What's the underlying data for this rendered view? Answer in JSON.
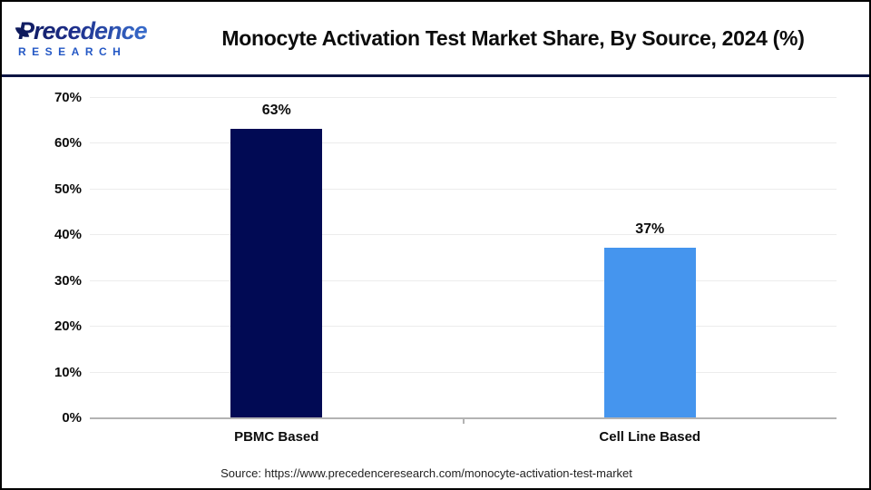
{
  "header": {
    "logo": {
      "line1": "Precedence",
      "line2": "RESEARCH",
      "color_dark": "#0e1a5c",
      "color_light": "#3f7fe0"
    },
    "title": "Monocyte Activation Test Market Share, By Source, 2024 (%)",
    "divider_color": "#0d1442"
  },
  "chart_data": {
    "type": "bar",
    "title": "Monocyte Activation Test Market Share, By Source, 2024 (%)",
    "categories": [
      "PBMC Based",
      "Cell Line Based"
    ],
    "values": [
      63,
      37
    ],
    "value_labels": [
      "63%",
      "37%"
    ],
    "bar_colors": [
      "#010a54",
      "#4595ee"
    ],
    "xlabel": "",
    "ylabel": "",
    "ylim": [
      0,
      70
    ],
    "ytick_step": 10,
    "ytick_labels": [
      "0%",
      "10%",
      "20%",
      "30%",
      "40%",
      "50%",
      "60%",
      "70%"
    ],
    "grid": true,
    "gridline_color": "#ececec",
    "axis_color": "#b3b3b3",
    "legend": "none"
  },
  "footer": {
    "source_text": "Source: https://www.precedenceresearch.com/monocyte-activation-test-market"
  }
}
